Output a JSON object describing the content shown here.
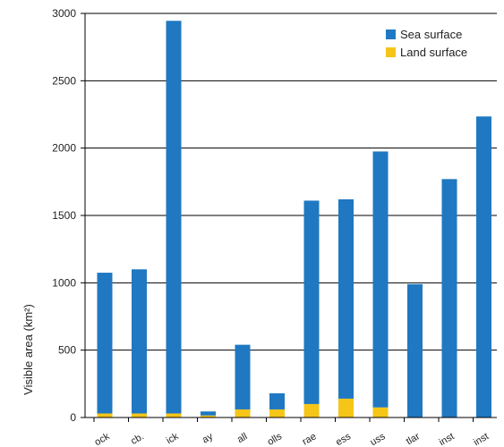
{
  "chart_data": {
    "type": "bar",
    "stacked": true,
    "categories": [
      "...ock",
      "...cb.",
      "...ick",
      "...ay",
      "...all",
      "...olls",
      "...rae",
      "...ess",
      "...uss",
      "...tlar",
      "...inst",
      "...inst"
    ],
    "series": [
      {
        "name": "Land surface",
        "color": "#f5c518",
        "values": [
          30,
          30,
          30,
          15,
          60,
          60,
          100,
          140,
          75,
          0,
          0,
          0
        ]
      },
      {
        "name": "Sea surface",
        "color": "#1f78c1",
        "values": [
          1045,
          1070,
          2915,
          30,
          480,
          120,
          1510,
          1480,
          1900,
          990,
          1770,
          2235
        ]
      }
    ],
    "title": "",
    "xlabel": "",
    "ylabel": "Visible area (km²)",
    "ylim": [
      0,
      3000
    ],
    "yticks": [
      0,
      500,
      1000,
      1500,
      2000,
      2500,
      3000
    ],
    "grid": "horizontal",
    "legend_position": "top-right",
    "legend_order": [
      "Sea surface",
      "Land surface"
    ]
  }
}
